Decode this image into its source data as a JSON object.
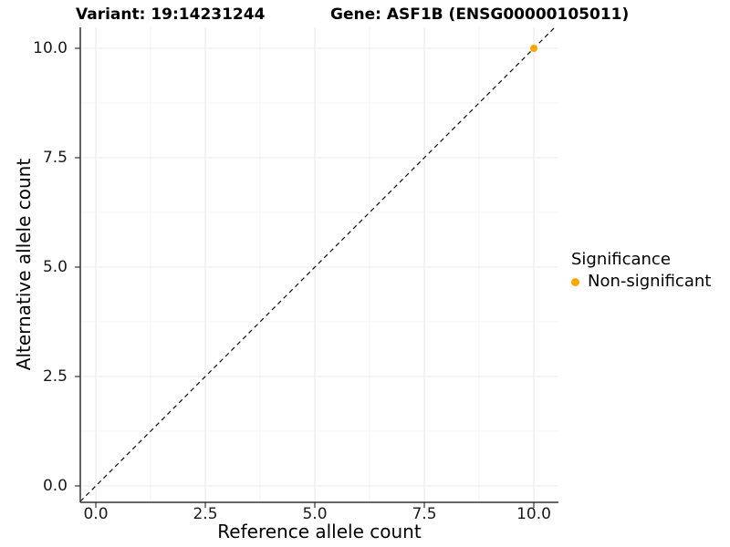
{
  "title": {
    "variant": "Variant: 19:14231244",
    "gene": "Gene: ASF1B (ENSG00000105011)"
  },
  "chart_data": {
    "type": "scatter",
    "title": "Variant: 19:14231244  Gene: ASF1B (ENSG00000105011)",
    "xlabel": "Reference allele count",
    "ylabel": "Alternative allele count",
    "xlim": [
      -0.5,
      10.5
    ],
    "ylim": [
      -0.5,
      10.5
    ],
    "x_ticks": [
      0,
      2.5,
      5,
      7.5,
      10
    ],
    "x_tick_labels": [
      "0.0",
      "2.5",
      "5.0",
      "7.5",
      "10.0"
    ],
    "y_ticks": [
      0,
      2.5,
      5,
      7.5,
      10
    ],
    "y_tick_labels": [
      "0.0",
      "2.5",
      "5.0",
      "7.5",
      "10.0"
    ],
    "minor_ticks": [
      1.25,
      3.75,
      6.25,
      8.75
    ],
    "grid": true,
    "identity_line": {
      "style": "dashed",
      "slope": 1,
      "intercept": 0,
      "color": "#000000"
    },
    "points": [
      {
        "x": 10,
        "y": 10,
        "series": "Non-significant"
      }
    ],
    "legend": {
      "title": "Significance",
      "position": "right",
      "entries": [
        {
          "label": "Non-significant",
          "color": "#FFA500"
        }
      ]
    },
    "colors": {
      "point": "#FFA500",
      "grid_major": "#E8E8E8",
      "grid_minor": "#F3F3F3",
      "axis_line": "#333333",
      "tick_mark": "#333333"
    }
  }
}
